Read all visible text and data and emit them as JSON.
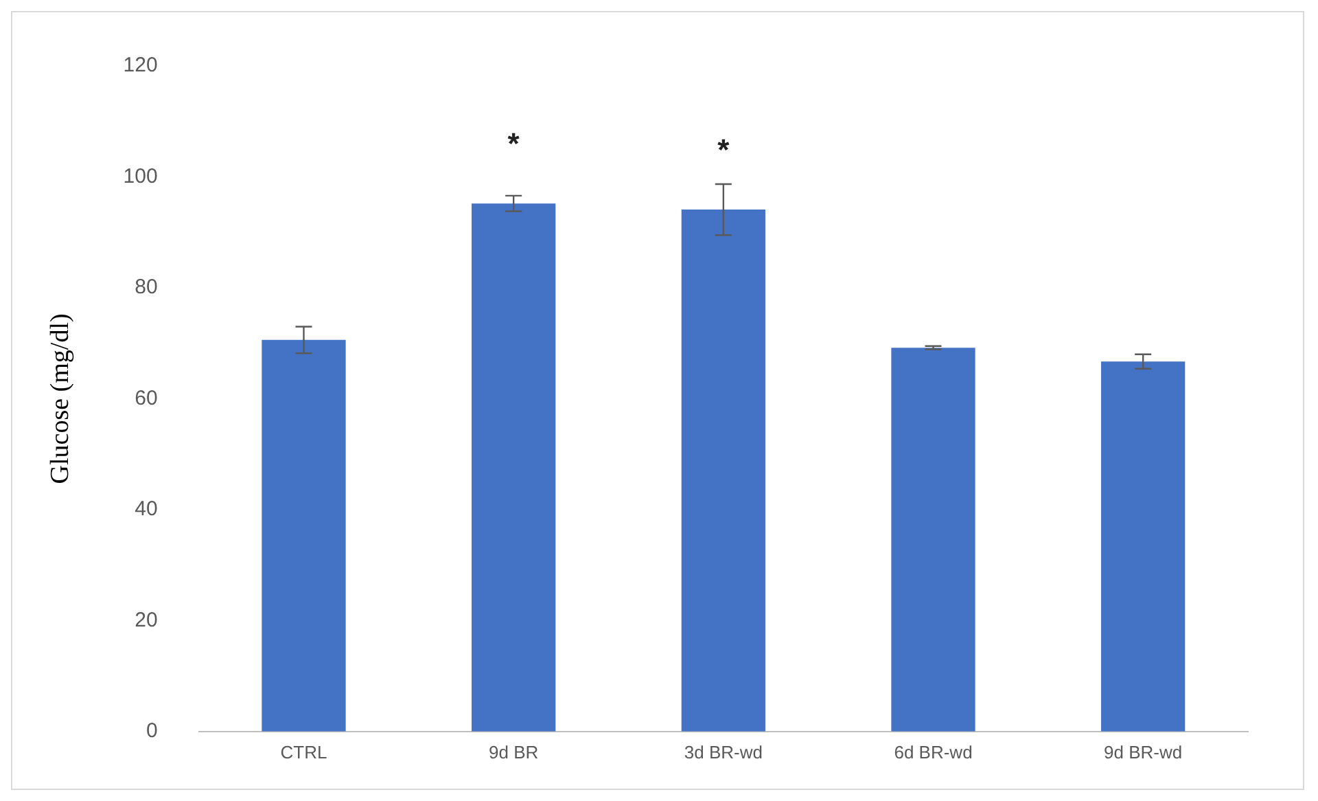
{
  "chart_data": {
    "type": "bar",
    "ylabel": "Glucose (mg/dl)",
    "categories": [
      "CTRL",
      "9d BR",
      "3d BR-wd",
      "6d BR-wd",
      "9d BR-wd"
    ],
    "values": [
      70.6,
      95.2,
      94.1,
      69.2,
      66.7
    ],
    "errors": [
      2.4,
      1.4,
      4.6,
      0.3,
      1.3
    ],
    "color": "#4472c4",
    "ylim": [
      0,
      120
    ],
    "yticks": [
      0,
      20,
      40,
      60,
      80,
      100,
      120
    ],
    "grid": false,
    "legend": false,
    "annotations": [
      {
        "text": "*",
        "x": "9d BR",
        "y": 95.2
      },
      {
        "text": "*",
        "x": "3d BR-wd",
        "y": 94.1
      }
    ]
  }
}
